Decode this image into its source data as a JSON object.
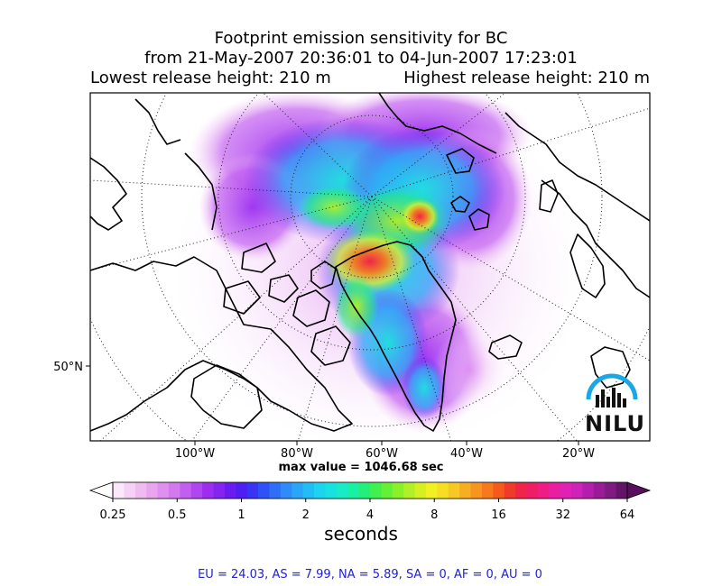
{
  "title": {
    "line1": "Footprint emission sensitivity for BC",
    "line2": "from 21-May-2007 20:36:01 to 04-Jun-2007 17:23:01",
    "lowest_release": "Lowest release height: 210 m",
    "highest_release": "Highest release height: 210 m"
  },
  "max_value_label": "max value = 1046.68 sec",
  "regions_summary": "EU = 24.03,  AS = 7.99,  NA = 5.89,  SA = 0,  AF = 0,  AU = 0",
  "logo_text": "NILU",
  "chart_data": {
    "type": "heatmap",
    "map_projection": "polar stereographic (Arctic)",
    "x_tick_labels": [
      "100°W",
      "80°W",
      "60°W",
      "40°W",
      "20°W"
    ],
    "y_tick_labels": [
      "50°N"
    ],
    "max_value": 1046.68,
    "max_value_unit": "sec",
    "colorbar": {
      "label": "seconds",
      "scale": "log",
      "ticks": [
        0.25,
        0.5,
        1,
        2,
        4,
        8,
        16,
        32,
        64
      ],
      "tick_labels": [
        "0.25",
        "0.5",
        "1",
        "2",
        "4",
        "8",
        "16",
        "32",
        "64"
      ],
      "extend": "both",
      "colors": [
        "#fbe8fb",
        "#f5d2f5",
        "#efbcef",
        "#e9a6ef",
        "#df8ff0",
        "#d478f0",
        "#c35ff0",
        "#b145f0",
        "#9b2ef0",
        "#8324f0",
        "#6a1cf0",
        "#4e1ef2",
        "#3a35f5",
        "#2f52f7",
        "#2f6ff8",
        "#2f8bf8",
        "#2aa5f8",
        "#23bdf5",
        "#1cd3f0",
        "#18e2e0",
        "#18ecc6",
        "#18f0a3",
        "#22f07a",
        "#3ef050",
        "#64f034",
        "#8af028",
        "#b0f024",
        "#d4f022",
        "#f0f024",
        "#f5de24",
        "#f8c824",
        "#f8ae22",
        "#f89420",
        "#f8781e",
        "#f55a1c",
        "#f03a2a",
        "#ee2448",
        "#ef1c66",
        "#ef1c84",
        "#ea1ea0",
        "#df22b5",
        "#ce22b8",
        "#b51eac",
        "#9a1a98",
        "#7e1a80",
        "#641468"
      ]
    },
    "regions": {
      "EU": 24.03,
      "AS": 7.99,
      "NA": 5.89,
      "SA": 0,
      "AF": 0,
      "AU": 0
    }
  }
}
